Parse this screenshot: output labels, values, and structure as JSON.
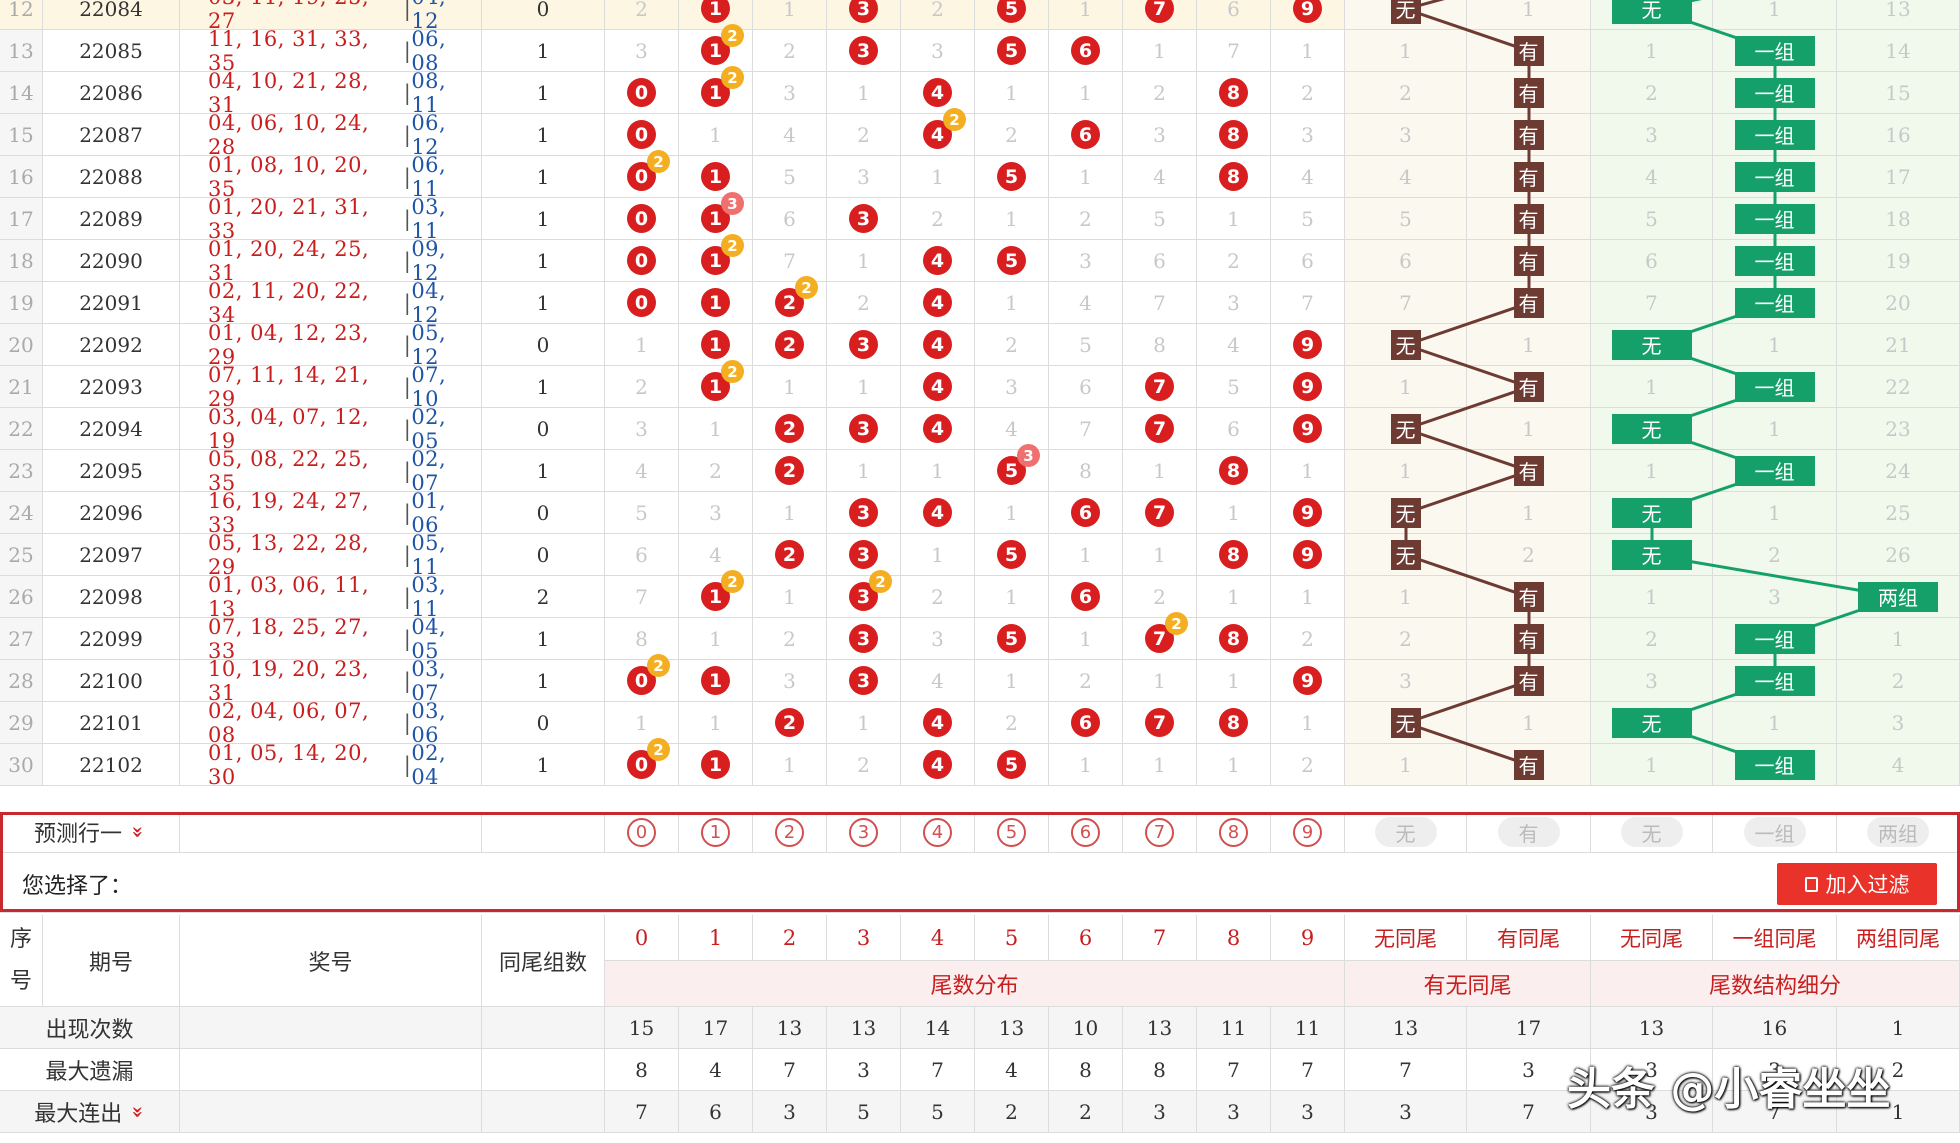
{
  "rows": [
    {
      "seq": "12",
      "issue": "22084",
      "front": "03, 11, 19, 25, 27",
      "back": "04, 12",
      "count": "0",
      "cells": [
        "2",
        "1",
        "1",
        "3",
        "2",
        "5",
        "1",
        "7",
        "6",
        "9"
      ],
      "hit": [
        false,
        true,
        false,
        true,
        false,
        true,
        false,
        true,
        false,
        true
      ],
      "badges": [
        null,
        null,
        null,
        null,
        null,
        null,
        null,
        null,
        null,
        null
      ],
      "yw": "无",
      "you": "1",
      "wt": "无",
      "yz": "1",
      "lz": "13",
      "yw_hit": true,
      "you_hit": false,
      "grp": "none"
    },
    {
      "seq": "13",
      "issue": "22085",
      "front": "11, 16, 31, 33, 35",
      "back": "06, 08",
      "count": "1",
      "cells": [
        "3",
        "1",
        "2",
        "3",
        "3",
        "5",
        "6",
        "1",
        "7",
        "1"
      ],
      "hit": [
        false,
        true,
        false,
        true,
        false,
        true,
        true,
        false,
        false,
        false
      ],
      "badges": [
        null,
        "2",
        null,
        null,
        null,
        null,
        null,
        null,
        null,
        null
      ],
      "yw": "1",
      "you": "有",
      "wt": "1",
      "yz": "一组",
      "lz": "14",
      "yw_hit": false,
      "you_hit": true,
      "grp": "one"
    },
    {
      "seq": "14",
      "issue": "22086",
      "front": "04, 10, 21, 28, 31",
      "back": "08, 11",
      "count": "1",
      "cells": [
        "0",
        "1",
        "3",
        "1",
        "4",
        "1",
        "1",
        "2",
        "8",
        "2"
      ],
      "hit": [
        true,
        true,
        false,
        false,
        true,
        false,
        false,
        false,
        true,
        false
      ],
      "badges": [
        null,
        "2",
        null,
        null,
        null,
        null,
        null,
        null,
        null,
        null
      ],
      "yw": "2",
      "you": "有",
      "wt": "2",
      "yz": "一组",
      "lz": "15",
      "yw_hit": false,
      "you_hit": true,
      "grp": "one"
    },
    {
      "seq": "15",
      "issue": "22087",
      "front": "04, 06, 10, 24, 28",
      "back": "06, 12",
      "count": "1",
      "cells": [
        "0",
        "1",
        "4",
        "2",
        "4",
        "2",
        "6",
        "3",
        "8",
        "3"
      ],
      "hit": [
        true,
        false,
        false,
        false,
        true,
        false,
        true,
        false,
        true,
        false
      ],
      "badges": [
        null,
        null,
        null,
        null,
        "2",
        null,
        null,
        null,
        null,
        null
      ],
      "yw": "3",
      "you": "有",
      "wt": "3",
      "yz": "一组",
      "lz": "16",
      "yw_hit": false,
      "you_hit": true,
      "grp": "one"
    },
    {
      "seq": "16",
      "issue": "22088",
      "front": "01, 08, 10, 20, 35",
      "back": "06, 11",
      "count": "1",
      "cells": [
        "0",
        "1",
        "5",
        "3",
        "1",
        "5",
        "1",
        "4",
        "8",
        "4"
      ],
      "hit": [
        true,
        true,
        false,
        false,
        false,
        true,
        false,
        false,
        true,
        false
      ],
      "badges": [
        "2",
        null,
        null,
        null,
        null,
        null,
        null,
        null,
        null,
        null
      ],
      "yw": "4",
      "you": "有",
      "wt": "4",
      "yz": "一组",
      "lz": "17",
      "yw_hit": false,
      "you_hit": true,
      "grp": "one"
    },
    {
      "seq": "17",
      "issue": "22089",
      "front": "01, 20, 21, 31, 33",
      "back": "03, 11",
      "count": "1",
      "cells": [
        "0",
        "1",
        "6",
        "3",
        "2",
        "1",
        "2",
        "5",
        "1",
        "5"
      ],
      "hit": [
        true,
        true,
        false,
        true,
        false,
        false,
        false,
        false,
        false,
        false
      ],
      "badges": [
        null,
        "3",
        null,
        null,
        null,
        null,
        null,
        null,
        null,
        null
      ],
      "yw": "5",
      "you": "有",
      "wt": "5",
      "yz": "一组",
      "lz": "18",
      "yw_hit": false,
      "you_hit": true,
      "grp": "one"
    },
    {
      "seq": "18",
      "issue": "22090",
      "front": "01, 20, 24, 25, 31",
      "back": "09, 12",
      "count": "1",
      "cells": [
        "0",
        "1",
        "7",
        "1",
        "4",
        "5",
        "3",
        "6",
        "2",
        "6"
      ],
      "hit": [
        true,
        true,
        false,
        false,
        true,
        true,
        false,
        false,
        false,
        false
      ],
      "badges": [
        null,
        "2",
        null,
        null,
        null,
        null,
        null,
        null,
        null,
        null
      ],
      "yw": "6",
      "you": "有",
      "wt": "6",
      "yz": "一组",
      "lz": "19",
      "yw_hit": false,
      "you_hit": true,
      "grp": "one"
    },
    {
      "seq": "19",
      "issue": "22091",
      "front": "02, 11, 20, 22, 34",
      "back": "04, 12",
      "count": "1",
      "cells": [
        "0",
        "1",
        "2",
        "2",
        "4",
        "1",
        "4",
        "7",
        "3",
        "7"
      ],
      "hit": [
        true,
        true,
        true,
        false,
        true,
        false,
        false,
        false,
        false,
        false
      ],
      "badges": [
        null,
        null,
        "2",
        null,
        null,
        null,
        null,
        null,
        null,
        null
      ],
      "yw": "7",
      "you": "有",
      "wt": "7",
      "yz": "一组",
      "lz": "20",
      "yw_hit": false,
      "you_hit": true,
      "grp": "one"
    },
    {
      "seq": "20",
      "issue": "22092",
      "front": "01, 04, 12, 23, 29",
      "back": "05, 12",
      "count": "0",
      "cells": [
        "1",
        "1",
        "2",
        "3",
        "4",
        "2",
        "5",
        "8",
        "4",
        "9"
      ],
      "hit": [
        false,
        true,
        true,
        true,
        true,
        false,
        false,
        false,
        false,
        true
      ],
      "badges": [
        null,
        null,
        null,
        null,
        null,
        null,
        null,
        null,
        null,
        null
      ],
      "yw": "无",
      "you": "1",
      "wt": "无",
      "yz": "1",
      "lz": "21",
      "yw_hit": true,
      "you_hit": false,
      "grp": "none"
    },
    {
      "seq": "21",
      "issue": "22093",
      "front": "07, 11, 14, 21, 29",
      "back": "07, 10",
      "count": "1",
      "cells": [
        "2",
        "1",
        "1",
        "1",
        "4",
        "3",
        "6",
        "7",
        "5",
        "9"
      ],
      "hit": [
        false,
        true,
        false,
        false,
        true,
        false,
        false,
        true,
        false,
        true
      ],
      "badges": [
        null,
        "2",
        null,
        null,
        null,
        null,
        null,
        null,
        null,
        null
      ],
      "yw": "1",
      "you": "有",
      "wt": "1",
      "yz": "一组",
      "lz": "22",
      "yw_hit": false,
      "you_hit": true,
      "grp": "one"
    },
    {
      "seq": "22",
      "issue": "22094",
      "front": "03, 04, 07, 12, 19",
      "back": "02, 05",
      "count": "0",
      "cells": [
        "3",
        "1",
        "2",
        "3",
        "4",
        "4",
        "7",
        "7",
        "6",
        "9"
      ],
      "hit": [
        false,
        false,
        true,
        true,
        true,
        false,
        false,
        true,
        false,
        true
      ],
      "badges": [
        null,
        null,
        null,
        null,
        null,
        null,
        null,
        null,
        null,
        null
      ],
      "yw": "无",
      "you": "1",
      "wt": "无",
      "yz": "1",
      "lz": "23",
      "yw_hit": true,
      "you_hit": false,
      "grp": "none"
    },
    {
      "seq": "23",
      "issue": "22095",
      "front": "05, 08, 22, 25, 35",
      "back": "02, 07",
      "count": "1",
      "cells": [
        "4",
        "2",
        "2",
        "1",
        "1",
        "5",
        "8",
        "1",
        "8",
        "1"
      ],
      "hit": [
        false,
        false,
        true,
        false,
        false,
        true,
        false,
        false,
        true,
        false
      ],
      "badges": [
        null,
        null,
        null,
        null,
        null,
        "3",
        null,
        null,
        null,
        null
      ],
      "yw": "1",
      "you": "有",
      "wt": "1",
      "yz": "一组",
      "lz": "24",
      "yw_hit": false,
      "you_hit": true,
      "grp": "one"
    },
    {
      "seq": "24",
      "issue": "22096",
      "front": "16, 19, 24, 27, 33",
      "back": "01, 06",
      "count": "0",
      "cells": [
        "5",
        "3",
        "1",
        "3",
        "4",
        "1",
        "6",
        "7",
        "1",
        "9"
      ],
      "hit": [
        false,
        false,
        false,
        true,
        true,
        false,
        true,
        true,
        false,
        true
      ],
      "badges": [
        null,
        null,
        null,
        null,
        null,
        null,
        null,
        null,
        null,
        null
      ],
      "yw": "无",
      "you": "1",
      "wt": "无",
      "yz": "1",
      "lz": "25",
      "yw_hit": true,
      "you_hit": false,
      "grp": "none"
    },
    {
      "seq": "25",
      "issue": "22097",
      "front": "05, 13, 22, 28, 29",
      "back": "05, 11",
      "count": "0",
      "cells": [
        "6",
        "4",
        "2",
        "3",
        "1",
        "5",
        "1",
        "1",
        "8",
        "9"
      ],
      "hit": [
        false,
        false,
        true,
        true,
        false,
        true,
        false,
        false,
        true,
        true
      ],
      "badges": [
        null,
        null,
        null,
        null,
        null,
        null,
        null,
        null,
        null,
        null
      ],
      "yw": "无",
      "you": "2",
      "wt": "无",
      "yz": "2",
      "lz": "26",
      "yw_hit": true,
      "you_hit": false,
      "grp": "none"
    },
    {
      "seq": "26",
      "issue": "22098",
      "front": "01, 03, 06, 11, 13",
      "back": "03, 11",
      "count": "2",
      "cells": [
        "7",
        "1",
        "1",
        "3",
        "2",
        "1",
        "6",
        "2",
        "1",
        "1"
      ],
      "hit": [
        false,
        true,
        false,
        true,
        false,
        false,
        true,
        false,
        false,
        false
      ],
      "badges": [
        null,
        "2",
        null,
        "2",
        null,
        null,
        null,
        null,
        null,
        null
      ],
      "yw": "1",
      "you": "有",
      "wt": "1",
      "yz": "3",
      "lz": "两组",
      "yw_hit": false,
      "you_hit": true,
      "grp": "two"
    },
    {
      "seq": "27",
      "issue": "22099",
      "front": "07, 18, 25, 27, 33",
      "back": "04, 05",
      "count": "1",
      "cells": [
        "8",
        "1",
        "2",
        "3",
        "3",
        "5",
        "1",
        "7",
        "8",
        "2"
      ],
      "hit": [
        false,
        false,
        false,
        true,
        false,
        true,
        false,
        true,
        true,
        false
      ],
      "badges": [
        null,
        null,
        null,
        null,
        null,
        null,
        null,
        "2",
        null,
        null
      ],
      "yw": "2",
      "you": "有",
      "wt": "2",
      "yz": "一组",
      "lz": "1",
      "yw_hit": false,
      "you_hit": true,
      "grp": "one"
    },
    {
      "seq": "28",
      "issue": "22100",
      "front": "10, 19, 20, 23, 31",
      "back": "03, 07",
      "count": "1",
      "cells": [
        "0",
        "1",
        "3",
        "3",
        "4",
        "1",
        "2",
        "1",
        "1",
        "9"
      ],
      "hit": [
        true,
        true,
        false,
        true,
        false,
        false,
        false,
        false,
        false,
        true
      ],
      "badges": [
        "2",
        null,
        null,
        null,
        null,
        null,
        null,
        null,
        null,
        null
      ],
      "yw": "3",
      "you": "有",
      "wt": "3",
      "yz": "一组",
      "lz": "2",
      "yw_hit": false,
      "you_hit": true,
      "grp": "one"
    },
    {
      "seq": "29",
      "issue": "22101",
      "front": "02, 04, 06, 07, 08",
      "back": "03, 06",
      "count": "0",
      "cells": [
        "1",
        "1",
        "2",
        "1",
        "4",
        "2",
        "6",
        "7",
        "8",
        "1"
      ],
      "hit": [
        false,
        false,
        true,
        false,
        true,
        false,
        true,
        true,
        true,
        false
      ],
      "badges": [
        null,
        null,
        null,
        null,
        null,
        null,
        null,
        null,
        null,
        null
      ],
      "yw": "无",
      "you": "1",
      "wt": "无",
      "yz": "1",
      "lz": "3",
      "yw_hit": true,
      "you_hit": false,
      "grp": "none"
    },
    {
      "seq": "30",
      "issue": "22102",
      "front": "01, 05, 14, 20, 30",
      "back": "02, 04",
      "count": "1",
      "cells": [
        "0",
        "1",
        "1",
        "2",
        "4",
        "5",
        "1",
        "1",
        "1",
        "2"
      ],
      "hit": [
        true,
        true,
        false,
        false,
        true,
        true,
        false,
        false,
        false,
        false
      ],
      "badges": [
        "2",
        null,
        null,
        null,
        null,
        null,
        null,
        null,
        null,
        null
      ],
      "yw": "1",
      "you": "有",
      "wt": "1",
      "yz": "一组",
      "lz": "4",
      "yw_hit": false,
      "you_hit": true,
      "grp": "one"
    }
  ],
  "predict": {
    "label": "预测行一",
    "digits": [
      "0",
      "1",
      "2",
      "3",
      "4",
      "5",
      "6",
      "7",
      "8",
      "9"
    ],
    "pills": [
      "无",
      "有",
      "无",
      "一组",
      "两组"
    ],
    "selected_label": "您选择了：",
    "filter_button": "加入过滤"
  },
  "header": {
    "seq": "序号",
    "issue": "期号",
    "draw": "奖号",
    "count": "同尾组数",
    "digits": [
      "0",
      "1",
      "2",
      "3",
      "4",
      "5",
      "6",
      "7",
      "8",
      "9"
    ],
    "tail_dist": "尾数分布",
    "yw_cols": [
      "无同尾",
      "有同尾"
    ],
    "yw_group": "有无同尾",
    "struct_cols": [
      "无同尾",
      "一组同尾",
      "两组同尾"
    ],
    "struct_group": "尾数结构细分"
  },
  "stats": [
    {
      "label": "出现次数",
      "arrow": false,
      "values": [
        "15",
        "17",
        "13",
        "13",
        "14",
        "13",
        "10",
        "13",
        "11",
        "11",
        "13",
        "17",
        "13",
        "16",
        "1"
      ]
    },
    {
      "label": "最大遗漏",
      "arrow": false,
      "values": [
        "8",
        "4",
        "7",
        "3",
        "7",
        "4",
        "8",
        "8",
        "7",
        "7",
        "7",
        "3",
        "3",
        "3",
        "2"
      ]
    },
    {
      "label": "最大连出",
      "arrow": true,
      "values": [
        "7",
        "6",
        "3",
        "5",
        "5",
        "2",
        "2",
        "3",
        "3",
        "3",
        "3",
        "7",
        "3",
        "7",
        "1"
      ]
    }
  ],
  "watermark": "头条 @小睿坐坐",
  "colors": {
    "ball": "#d81e1e",
    "badge": "#f4ae22",
    "brown": "#6e3b33",
    "green": "#15a06a",
    "predict_border": "#c8282e"
  }
}
